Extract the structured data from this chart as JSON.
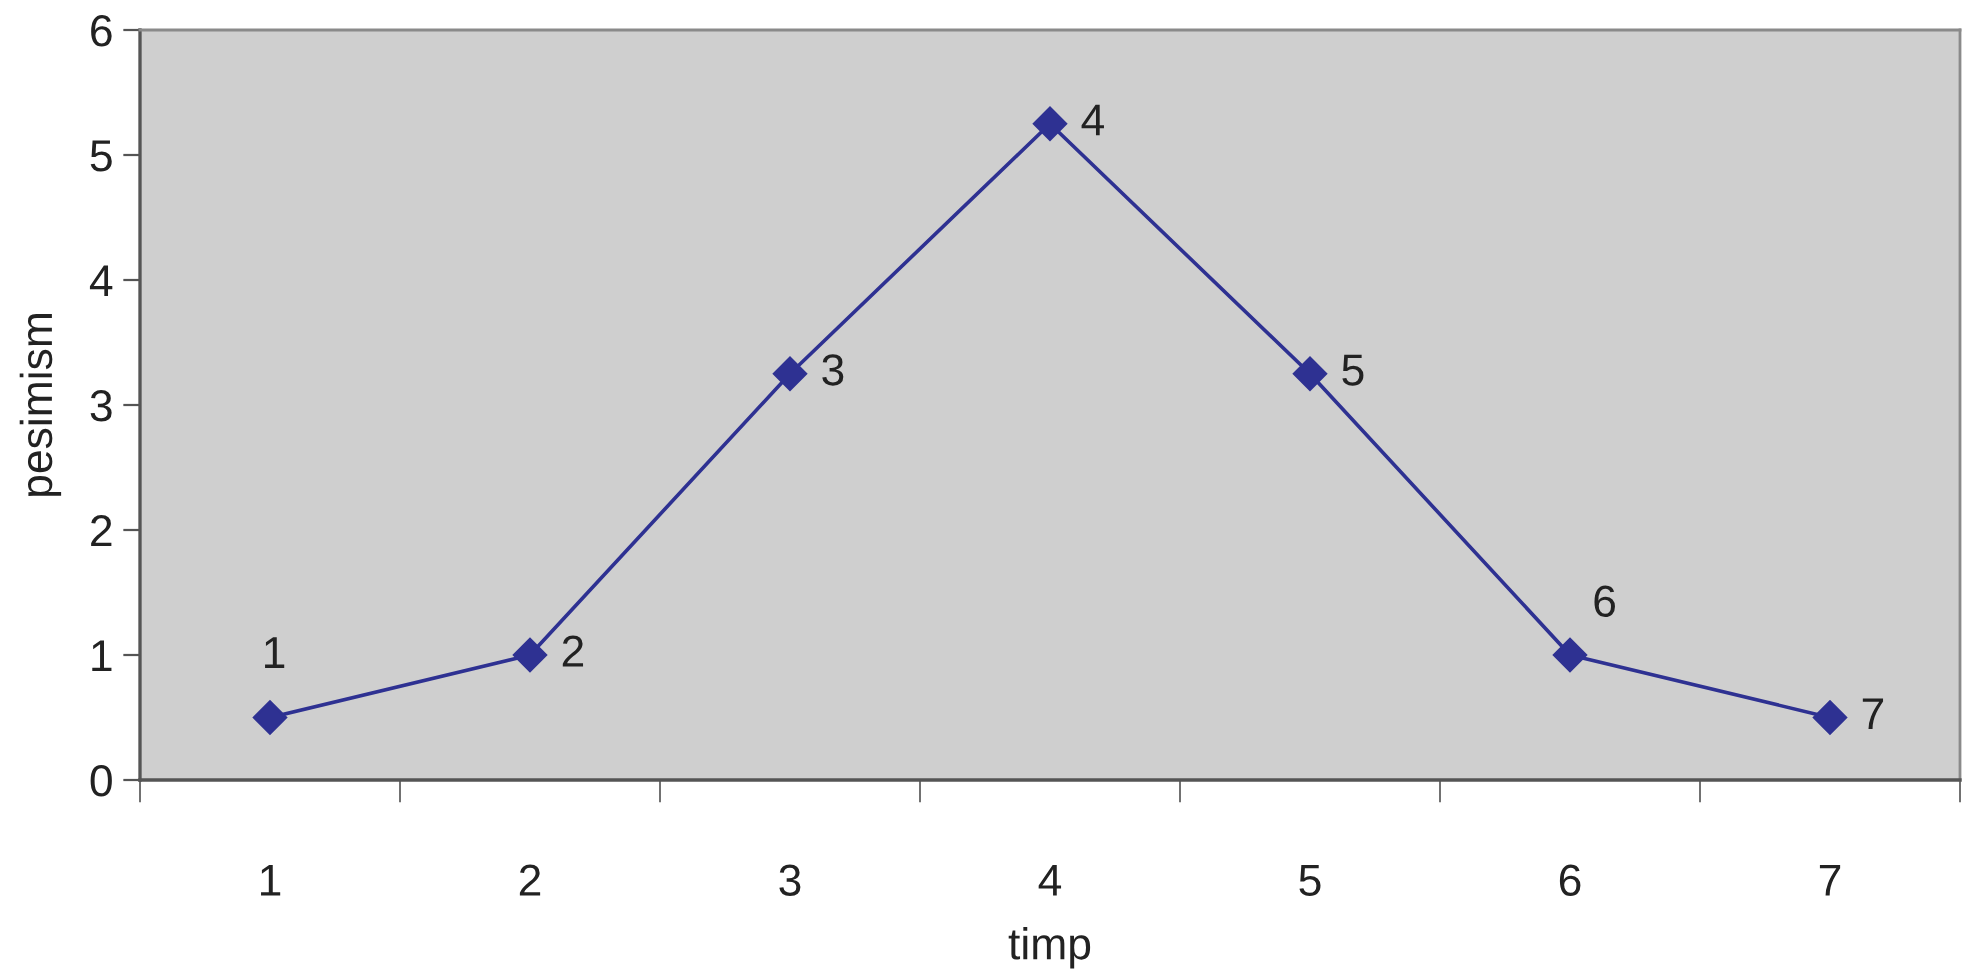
{
  "chart_data": {
    "type": "line",
    "xlabel": "timp",
    "ylabel": "pesimism",
    "categories": [
      "1",
      "2",
      "3",
      "4",
      "5",
      "6",
      "7"
    ],
    "series": [
      {
        "color": "#2e3192",
        "values": [
          0.5,
          1,
          3.25,
          5.25,
          3.25,
          1,
          0.5
        ]
      }
    ],
    "ylim": [
      0,
      6
    ],
    "yticks": [
      0,
      1,
      2,
      3,
      4,
      5,
      6
    ],
    "grid": false,
    "marker": "diamond",
    "line_style": "solid",
    "annotations": [
      {
        "text": "1",
        "x": "1",
        "y": 0.5
      },
      {
        "text": "2",
        "x": "2",
        "y": 1
      },
      {
        "text": "3",
        "x": "3",
        "y": 3.25
      },
      {
        "text": "4",
        "x": "4",
        "y": 5.25
      },
      {
        "text": "5",
        "x": "5",
        "y": 3.25
      },
      {
        "text": "6",
        "x": "6",
        "y": 1
      },
      {
        "text": "7",
        "x": "7",
        "y": 0.5
      }
    ]
  }
}
